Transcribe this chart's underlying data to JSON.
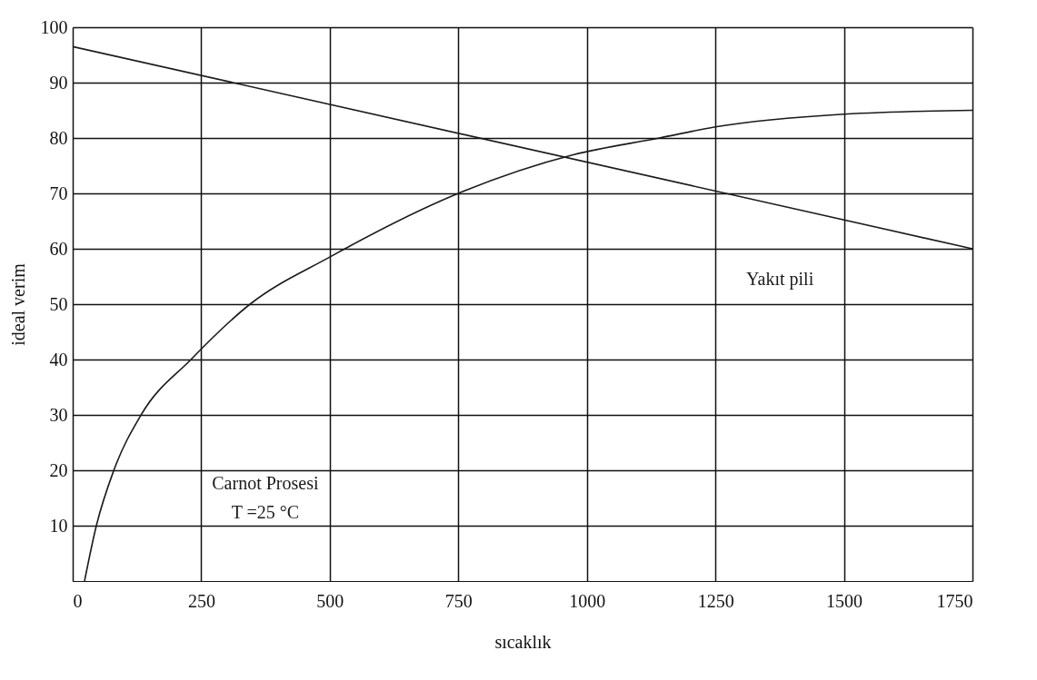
{
  "chart_data": {
    "type": "line",
    "xlabel": "sıcaklık",
    "ylabel": "ideal verim",
    "xlim": [
      0,
      1750
    ],
    "ylim": [
      0,
      100
    ],
    "xticks": [
      0,
      250,
      500,
      750,
      {
        "value": 1000,
        "label": "1000"
      },
      {
        "value": 1250,
        "label": "1250"
      },
      {
        "value": 1500,
        "label": "1500"
      },
      {
        "value": 1750,
        "label": "1750"
      }
    ],
    "yticks": [
      10,
      20,
      30,
      40,
      50,
      60,
      70,
      80,
      90,
      100
    ],
    "grid": true,
    "legend": false,
    "annotations": [
      "Carnot Prosesi\nT =25 °C"
    ],
    "series": [
      {
        "color": "#1a1a1a",
        "x": [
          23,
          46,
          80,
          133,
          230,
          345,
          500,
          750,
          975,
          1141,
          1250,
          1500,
          1750
        ],
        "values": [
          0,
          10,
          20,
          30,
          40,
          50,
          58.5,
          70,
          77,
          80,
          82,
          84.3,
          85
        ]
      },
      {
        "name": "Yakıt pili",
        "color": "#1a1a1a",
        "x": [
          0,
          1750
        ],
        "values": [
          96.5,
          60
        ]
      }
    ]
  }
}
